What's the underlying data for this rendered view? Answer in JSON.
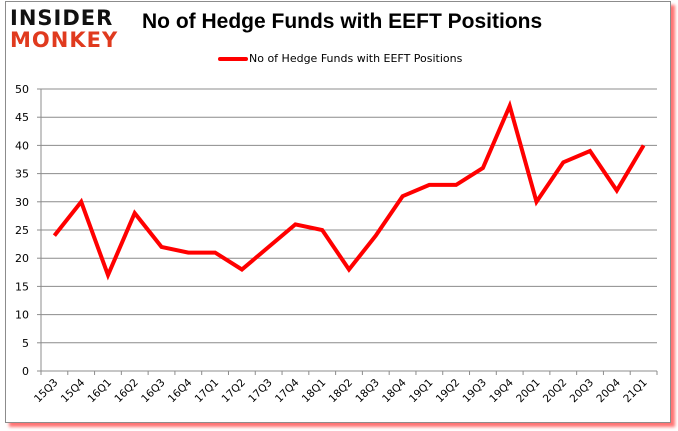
{
  "logo": {
    "line1": "INSIDER",
    "line2": "MONKEY"
  },
  "header": {
    "title": "No of Hedge Funds with EEFT Positions"
  },
  "legend": {
    "label": "No of Hedge Funds with EEFT Positions",
    "color": "#ff0000"
  },
  "chart_data": {
    "type": "line",
    "title": "No of Hedge Funds with EEFT Positions",
    "xlabel": "",
    "ylabel": "",
    "ylim": [
      0,
      50
    ],
    "yticks": [
      0,
      5,
      10,
      15,
      20,
      25,
      30,
      35,
      40,
      45,
      50
    ],
    "grid": true,
    "legend_position": "top",
    "categories": [
      "15Q3",
      "15Q4",
      "16Q1",
      "16Q2",
      "16Q3",
      "16Q4",
      "17Q1",
      "17Q2",
      "17Q3",
      "17Q4",
      "18Q1",
      "18Q2",
      "18Q3",
      "18Q4",
      "19Q1",
      "19Q2",
      "19Q3",
      "19Q4",
      "20Q1",
      "20Q2",
      "20Q3",
      "20Q4",
      "21Q1"
    ],
    "series": [
      {
        "name": "No of Hedge Funds with EEFT Positions",
        "color": "#ff0000",
        "values": [
          24,
          30,
          17,
          28,
          22,
          21,
          21,
          18,
          22,
          26,
          25,
          18,
          24,
          31,
          33,
          33,
          36,
          47,
          30,
          37,
          39,
          32,
          40
        ]
      }
    ]
  }
}
